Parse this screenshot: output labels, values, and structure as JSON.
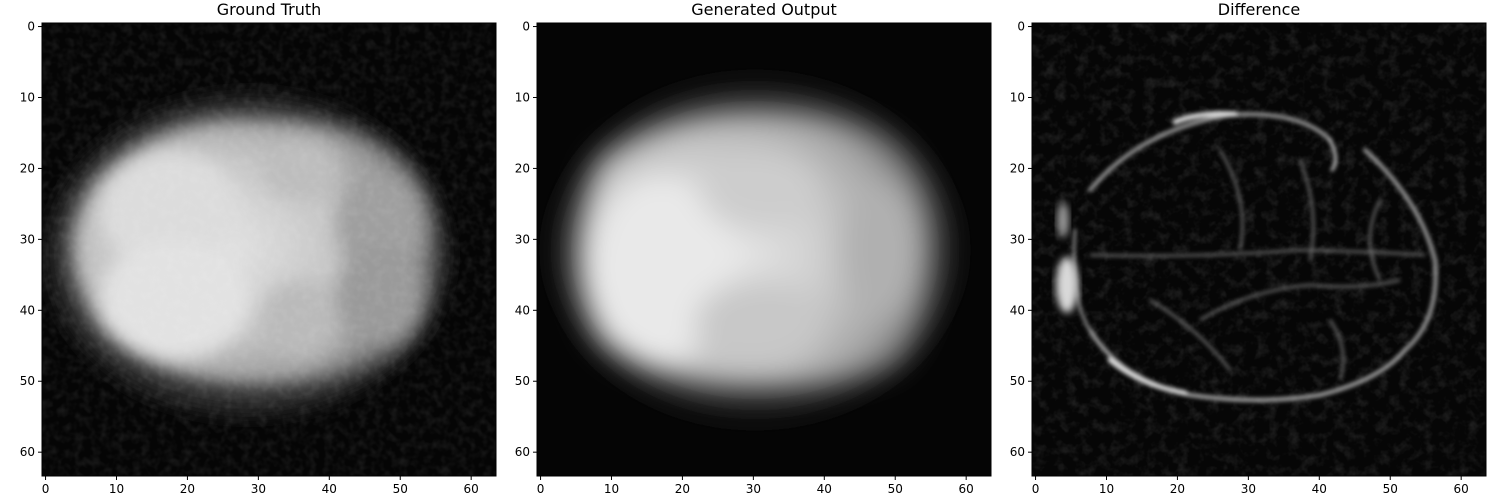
{
  "figure": {
    "panels": [
      {
        "id": "gt",
        "title": "Ground Truth",
        "kind": "ground-truth"
      },
      {
        "id": "gen",
        "title": "Generated Output",
        "kind": "generated"
      },
      {
        "id": "diff",
        "title": "Difference",
        "kind": "difference"
      }
    ],
    "x_ticks": [
      "0",
      "10",
      "20",
      "30",
      "40",
      "50",
      "60"
    ],
    "y_ticks": [
      "0",
      "10",
      "20",
      "30",
      "40",
      "50",
      "60"
    ],
    "image_size": [
      64,
      64
    ],
    "colormap": "gray"
  }
}
